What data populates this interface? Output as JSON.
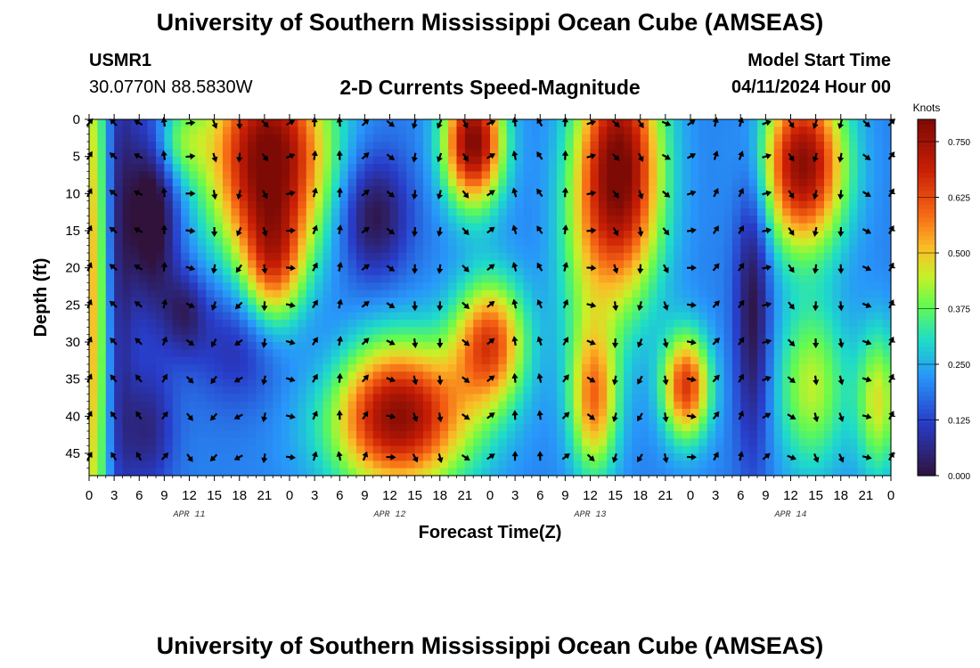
{
  "page": {
    "title": "University of Southern Mississippi Ocean Cube (AMSEAS)",
    "footer_title": "University of Southern Mississippi Ocean Cube (AMSEAS)"
  },
  "header": {
    "station": "USMR1",
    "coords": "30.0770N  88.5830W",
    "product": "2-D Currents Speed-Magnitude",
    "model_start_label": "Model Start Time",
    "model_start_value": "04/11/2024 Hour 00"
  },
  "chart_data": {
    "type": "heatmap",
    "title": "2-D Currents Speed-Magnitude",
    "xlabel": "Forecast Time(Z)",
    "ylabel": "Depth (ft)",
    "xlim": [
      0,
      96
    ],
    "ylim": [
      0,
      48
    ],
    "x_tick_labels": [
      "0",
      "3",
      "6",
      "9",
      "12",
      "15",
      "18",
      "21",
      "0",
      "3",
      "6",
      "9",
      "12",
      "15",
      "18",
      "21",
      "0",
      "3",
      "6",
      "9",
      "12",
      "15",
      "18",
      "21",
      "0",
      "3",
      "6",
      "9",
      "12",
      "15",
      "18",
      "21",
      "0"
    ],
    "date_labels": [
      {
        "hour": 12,
        "text": "APR 11"
      },
      {
        "hour": 36,
        "text": "APR 12"
      },
      {
        "hour": 60,
        "text": "APR 13"
      },
      {
        "hour": 84,
        "text": "APR 14"
      }
    ],
    "y_ticks": [
      0,
      5,
      10,
      15,
      20,
      25,
      30,
      35,
      40,
      45
    ],
    "colorbar": {
      "unit": "Knots",
      "min": 0.0,
      "max": 0.8,
      "tick_values": [
        0.0,
        0.125,
        0.25,
        0.375,
        0.5,
        0.625,
        0.75
      ],
      "tick_labels": [
        "0.000",
        "0.125",
        "0.250",
        "0.375",
        "0.500",
        "0.625",
        "0.750"
      ]
    },
    "speed_blobs": [
      {
        "t": 0.3,
        "d": 25,
        "st": 2,
        "sd": 35,
        "v": 0.34
      },
      {
        "t": 3.2,
        "d": 20,
        "st": 1.4,
        "sd": 30,
        "v": -0.2
      },
      {
        "t": 7.5,
        "d": 12,
        "st": 2.2,
        "sd": 10,
        "v": -0.26
      },
      {
        "t": 7,
        "d": 42,
        "st": 2.2,
        "sd": 6,
        "v": -0.14
      },
      {
        "t": 11.5,
        "d": 26,
        "st": 1.8,
        "sd": 4,
        "v": -0.14
      },
      {
        "t": 10.5,
        "d": 3,
        "st": 2.5,
        "sd": 4,
        "v": 0.18
      },
      {
        "t": 21.5,
        "d": 5,
        "st": 5,
        "sd": 10,
        "v": 0.62
      },
      {
        "t": 22,
        "d": 20,
        "st": 2.5,
        "sd": 6,
        "v": 0.3
      },
      {
        "t": 18,
        "d": 30,
        "st": 4,
        "sd": 6,
        "v": -0.12
      },
      {
        "t": 34,
        "d": 13,
        "st": 3,
        "sd": 6,
        "v": -0.2
      },
      {
        "t": 46,
        "d": 3,
        "st": 2.5,
        "sd": 6,
        "v": 0.6
      },
      {
        "t": 37,
        "d": 40,
        "st": 6,
        "sd": 7,
        "v": 0.58
      },
      {
        "t": 48,
        "d": 30,
        "st": 3,
        "sd": 6,
        "v": 0.42
      },
      {
        "t": 59,
        "d": 20,
        "st": 2.5,
        "sd": 12,
        "v": 0.1
      },
      {
        "t": 60.5,
        "d": 38,
        "st": 2,
        "sd": 7,
        "v": 0.35
      },
      {
        "t": 63.5,
        "d": 7,
        "st": 3.5,
        "sd": 12,
        "v": 0.62
      },
      {
        "t": 71.5,
        "d": 36,
        "st": 2,
        "sd": 5,
        "v": 0.45
      },
      {
        "t": 85.5,
        "d": 6,
        "st": 3.5,
        "sd": 8,
        "v": 0.58
      },
      {
        "t": 86.5,
        "d": 36,
        "st": 3,
        "sd": 8,
        "v": 0.24
      },
      {
        "t": 94.5,
        "d": 38,
        "st": 1.8,
        "sd": 7,
        "v": 0.26
      },
      {
        "t": 79.5,
        "d": 25,
        "st": 1.5,
        "sd": 15,
        "v": -0.2
      },
      {
        "t": 29,
        "d": 35,
        "st": 3,
        "sd": 8,
        "v": -0.05
      }
    ],
    "arrow_field": {
      "t_start": 0,
      "t_step": 3,
      "depths": [
        0.5,
        5,
        10,
        15,
        20,
        25,
        30,
        35,
        40,
        45.5
      ],
      "direction_rule": "angle_deg = 20*sin(0.22*t) + 30*sin(0.13*t + 0.05*d) + 110*sin(0.26*t + 0.4) + 8*cos(0.09*d)"
    }
  }
}
